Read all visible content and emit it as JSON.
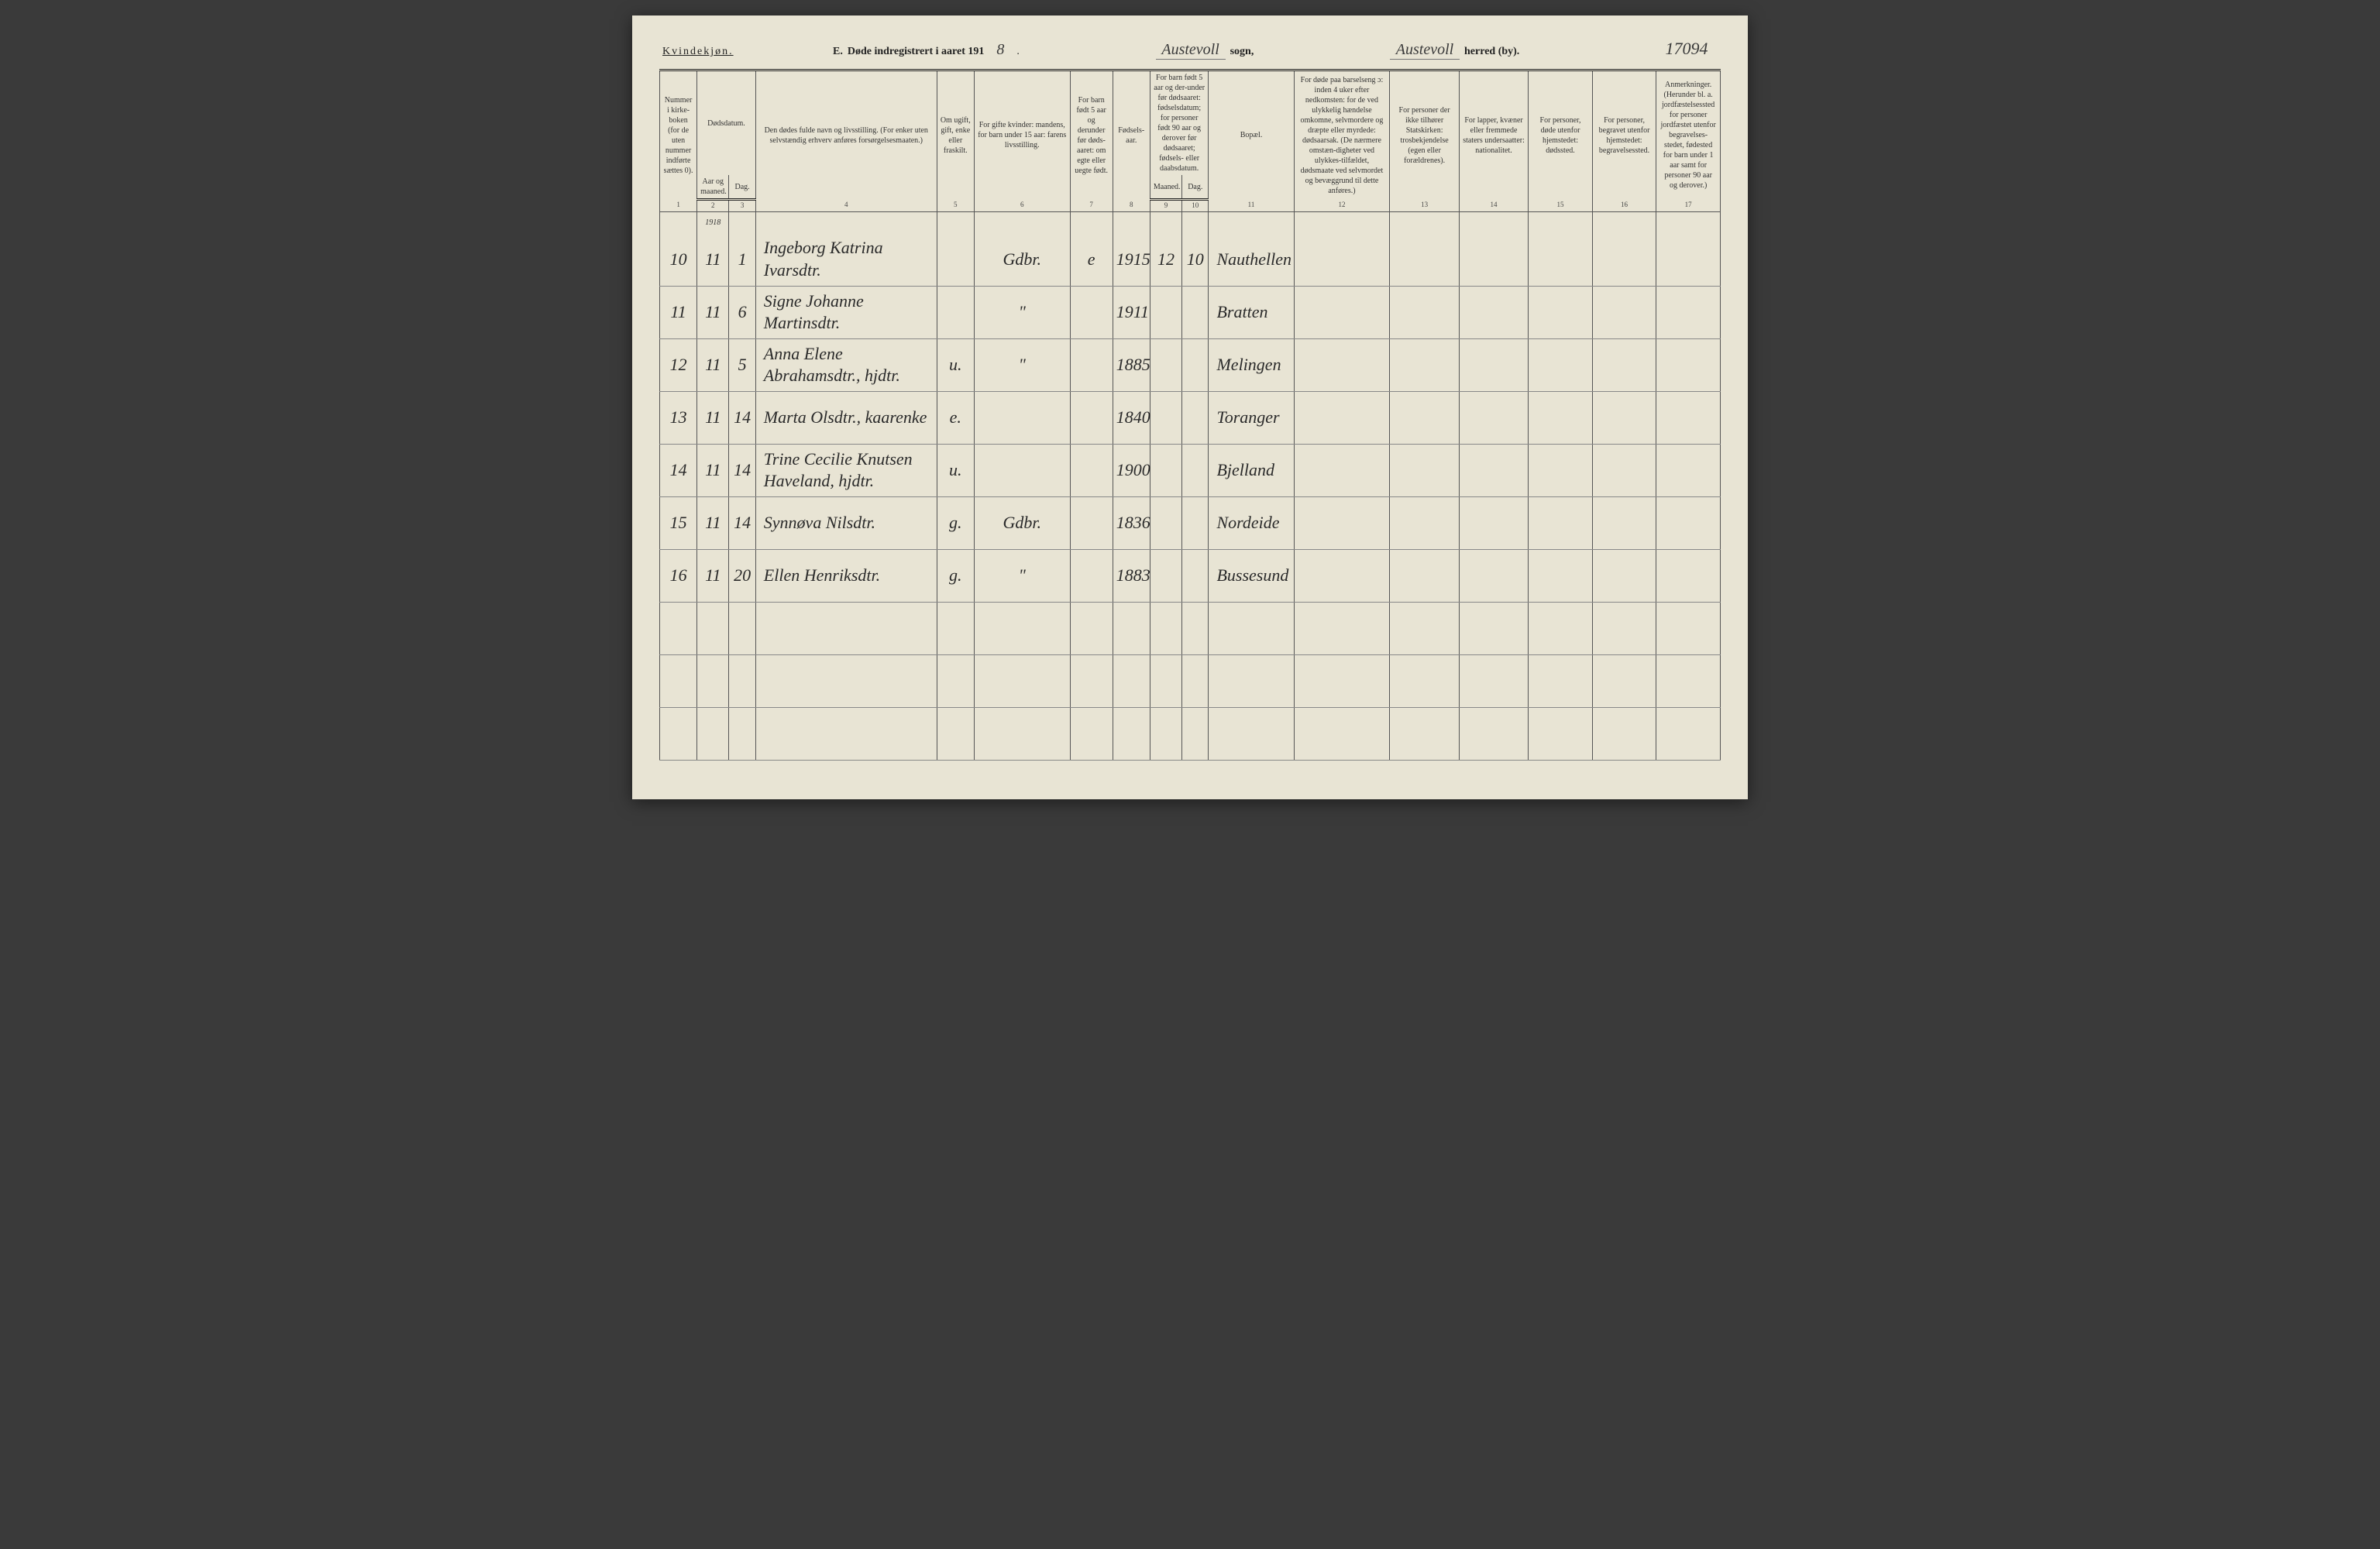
{
  "header": {
    "gender": "Kvindekjøn.",
    "title_prefix": "E.",
    "title_text": "Døde indregistrert i aaret 191",
    "year_suffix": "8",
    "sogn_value": "Austevoll",
    "sogn_label": "sogn,",
    "herred_value": "Austevoll",
    "herred_label": "herred (by).",
    "page_number": "17094"
  },
  "columns": {
    "c1": "Nummer i kirke-boken (for de uten nummer indførte sættes 0).",
    "c2_top": "Dødsdatum.",
    "c2": "Aar og maaned.",
    "c3": "Dag.",
    "c4": "Den dødes fulde navn og livsstilling. (For enker uten selvstændig erhverv anføres forsørgelsesmaaten.)",
    "c5": "Om ugift, gift, enke eller fraskilt.",
    "c6": "For gifte kvinder: mandens, for barn under 15 aar: farens livsstilling.",
    "c7": "For barn født 5 aar og derunder før døds-aaret: om egte eller uegte født.",
    "c8": "Fødsels-aar.",
    "c9_top": "For barn født 5 aar og der-under før dødsaaret: fødselsdatum; for personer født 90 aar og derover før dødsaaret; fødsels- eller daabsdatum.",
    "c9": "Maaned.",
    "c10": "Dag.",
    "c11": "Bopæl.",
    "c12": "For døde paa barselseng ɔ: inden 4 uker efter nedkomsten: for de ved ulykkelig hændelse omkomne, selvmordere og dræpte eller myrdede: dødsaarsak. (De nærmere omstæn-digheter ved ulykkes-tilfældet, dødsmaate ved selvmordet og bevæggrund til dette anføres.)",
    "c13": "For personer der ikke tilhører Statskirken: trosbekjendelse (egen eller forældrenes).",
    "c14": "For lapper, kvæner eller fremmede staters undersaatter: nationalitet.",
    "c15": "For personer, døde utenfor hjemstedet: dødssted.",
    "c16": "For personer, begravet utenfor hjemstedet: begravelsessted.",
    "c17": "Anmerkninger. (Herunder bl. a. jordfæstelsessted for personer jordfæstet utenfor begravelses-stedet, fødested for barn under 1 aar samt for personer 90 aar og derover.)"
  },
  "colnums": [
    "1",
    "2",
    "3",
    "4",
    "5",
    "6",
    "7",
    "8",
    "9",
    "10",
    "11",
    "12",
    "13",
    "14",
    "15",
    "16",
    "17"
  ],
  "year_marker": "1918",
  "rows": [
    {
      "num": "10",
      "mon": "11",
      "day": "1",
      "name": "Ingeborg Katrina Ivarsdtr.",
      "status": "",
      "occ": "Gdbr.",
      "legit": "e",
      "byear": "1915",
      "bmon": "12",
      "bday": "10",
      "place": "Nauthellen"
    },
    {
      "num": "11",
      "mon": "11",
      "day": "6",
      "name": "Signe Johanne Martinsdtr.",
      "status": "",
      "occ": "\"",
      "legit": "",
      "byear": "1911",
      "bmon": "",
      "bday": "",
      "place": "Bratten"
    },
    {
      "num": "12",
      "mon": "11",
      "day": "5",
      "name": "Anna Elene Abrahamsdtr., hjdtr.",
      "status": "u.",
      "occ": "\"",
      "legit": "",
      "byear": "1885",
      "bmon": "",
      "bday": "",
      "place": "Melingen"
    },
    {
      "num": "13",
      "mon": "11",
      "day": "14",
      "name": "Marta Olsdtr., kaarenke",
      "status": "e.",
      "occ": "",
      "legit": "",
      "byear": "1840",
      "bmon": "",
      "bday": "",
      "place": "Toranger"
    },
    {
      "num": "14",
      "mon": "11",
      "day": "14",
      "name": "Trine Cecilie Knutsen Haveland, hjdtr.",
      "status": "u.",
      "occ": "",
      "legit": "",
      "byear": "1900",
      "bmon": "",
      "bday": "",
      "place": "Bjelland"
    },
    {
      "num": "15",
      "mon": "11",
      "day": "14",
      "name": "Synnøva Nilsdtr.",
      "status": "g.",
      "occ": "Gdbr.",
      "legit": "",
      "byear": "1836",
      "bmon": "",
      "bday": "",
      "place": "Nordeide"
    },
    {
      "num": "16",
      "mon": "11",
      "day": "20",
      "name": "Ellen Henriksdtr.",
      "status": "g.",
      "occ": "\"",
      "legit": "",
      "byear": "1883",
      "bmon": "",
      "bday": "",
      "place": "Bussesund"
    },
    {
      "num": "",
      "mon": "",
      "day": "",
      "name": "",
      "status": "",
      "occ": "",
      "legit": "",
      "byear": "",
      "bmon": "",
      "bday": "",
      "place": ""
    },
    {
      "num": "",
      "mon": "",
      "day": "",
      "name": "",
      "status": "",
      "occ": "",
      "legit": "",
      "byear": "",
      "bmon": "",
      "bday": "",
      "place": ""
    },
    {
      "num": "",
      "mon": "",
      "day": "",
      "name": "",
      "status": "",
      "occ": "",
      "legit": "",
      "byear": "",
      "bmon": "",
      "bday": "",
      "place": ""
    }
  ]
}
